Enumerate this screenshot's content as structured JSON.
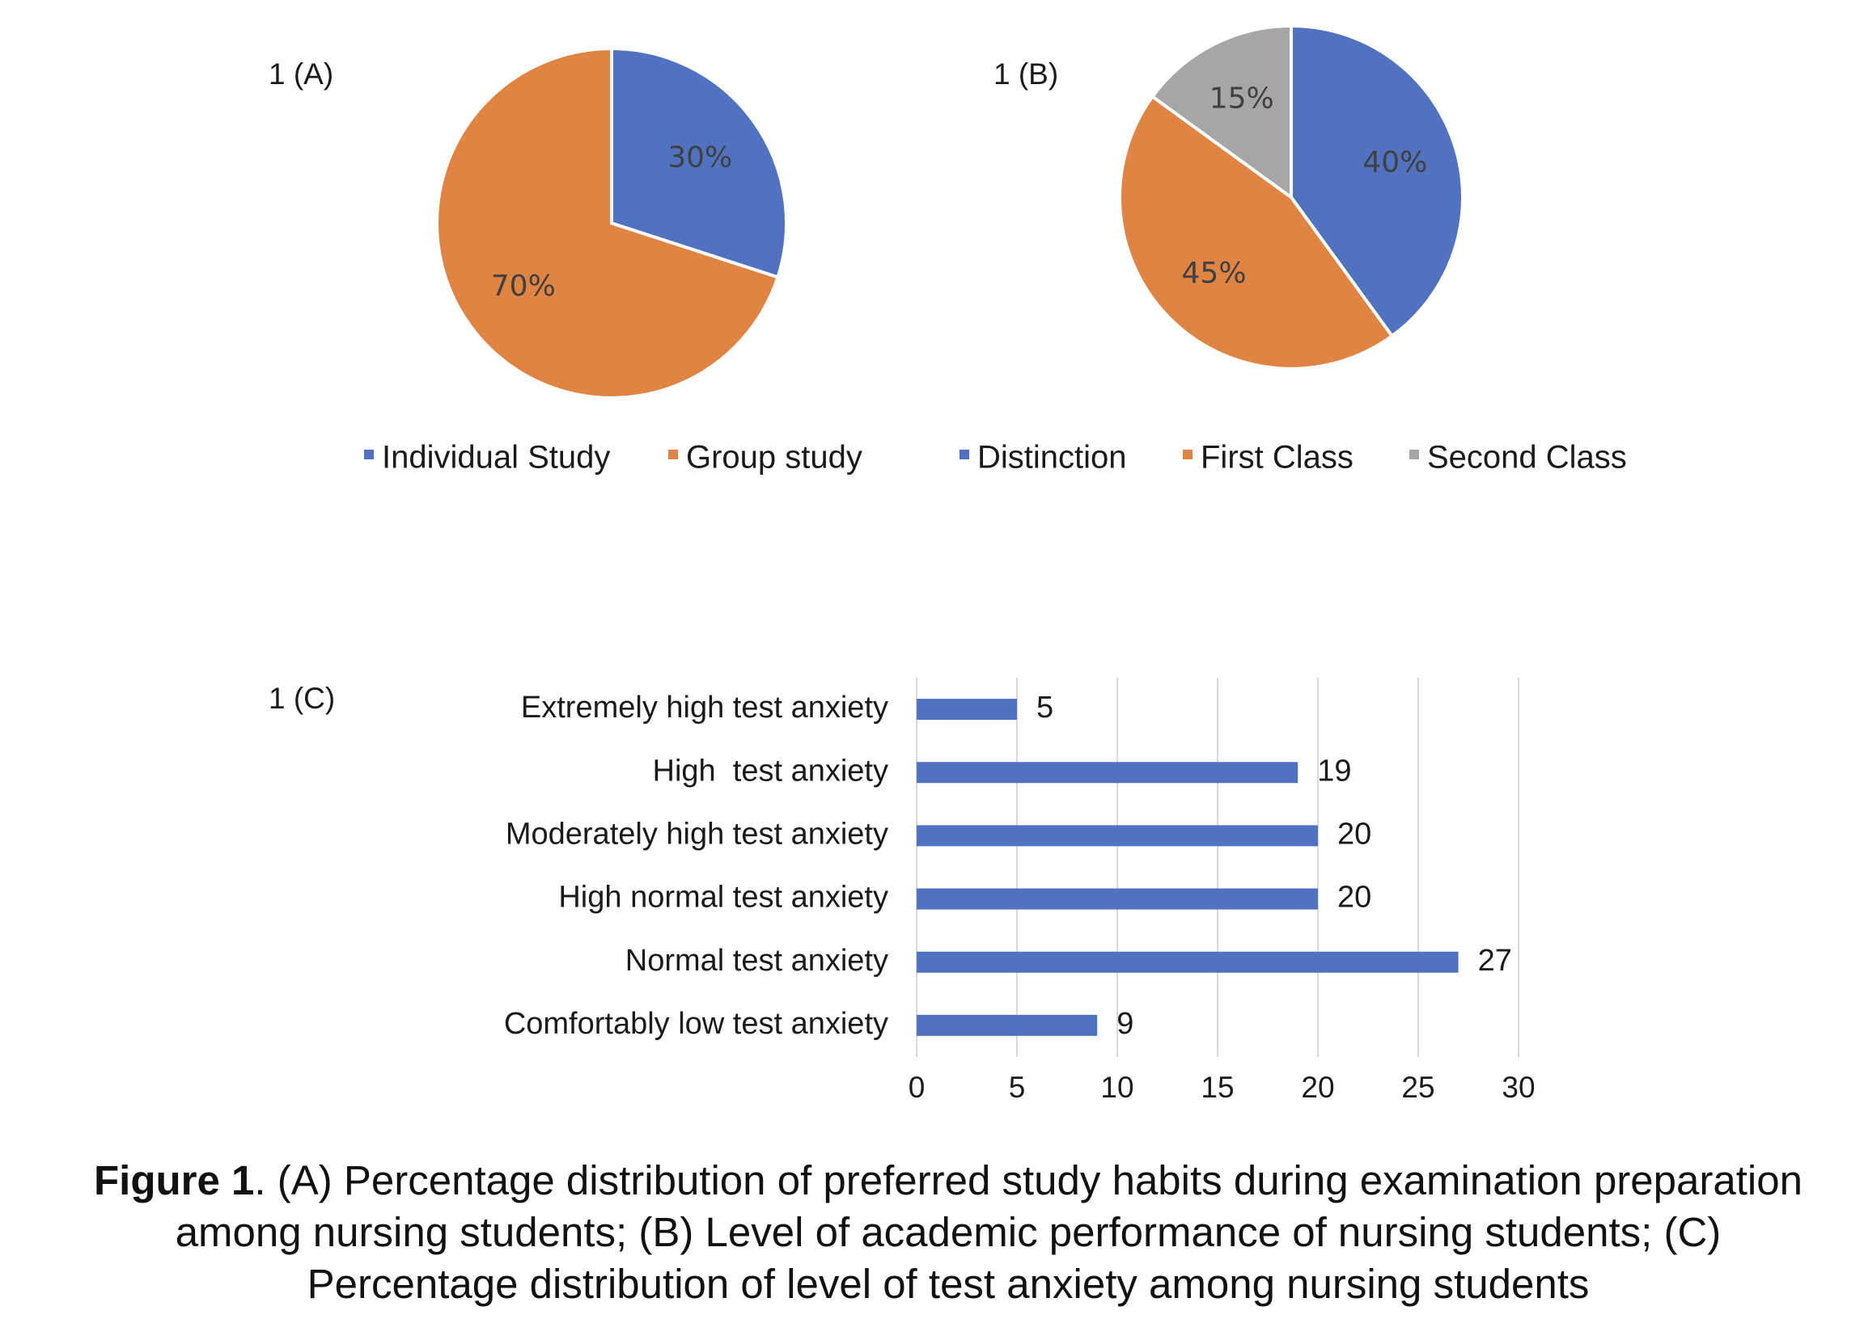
{
  "panels": {
    "a_label": "1 (A)",
    "b_label": "1 (B)",
    "c_label": "1 (C)"
  },
  "colors": {
    "blue": "#5072c1",
    "orange": "#e08443",
    "gray": "#a6a6a6",
    "grid": "#d9d9d9"
  },
  "chart_data": [
    {
      "type": "pie",
      "panel": "1 (A)",
      "slices": [
        {
          "label": "Individual Study",
          "value": 30,
          "text": "30%",
          "color": "#5072c1"
        },
        {
          "label": "Group study",
          "value": 70,
          "text": "70%",
          "color": "#e08443"
        }
      ],
      "legend": "bottom"
    },
    {
      "type": "pie",
      "panel": "1 (B)",
      "slices": [
        {
          "label": "Distinction",
          "value": 40,
          "text": "40%",
          "color": "#5072c1"
        },
        {
          "label": "First Class",
          "value": 45,
          "text": "45%",
          "color": "#e08443"
        },
        {
          "label": "Second Class",
          "value": 15,
          "text": "15%",
          "color": "#a6a6a6"
        }
      ],
      "legend": "bottom"
    },
    {
      "type": "bar",
      "orientation": "horizontal",
      "panel": "1 (C)",
      "categories": [
        "Extremely high test anxiety",
        "High  test anxiety",
        "Moderately high test anxiety",
        "High normal test anxiety",
        "Normal test anxiety",
        "Comfortably low test anxiety"
      ],
      "values": [
        5,
        19,
        20,
        20,
        27,
        9
      ],
      "xlim": [
        0,
        30
      ],
      "xticks": [
        0,
        5,
        10,
        15,
        20,
        25,
        30
      ],
      "grid": true,
      "color": "#5072c1"
    }
  ],
  "caption": {
    "bold": "Figure 1",
    "line1_rest": ". (A) Percentage distribution of preferred study habits during examination preparation",
    "line2": "among nursing students; (B) Level of academic performance of nursing students; (C)",
    "line3": "Percentage distribution of level of test anxiety among nursing students"
  }
}
